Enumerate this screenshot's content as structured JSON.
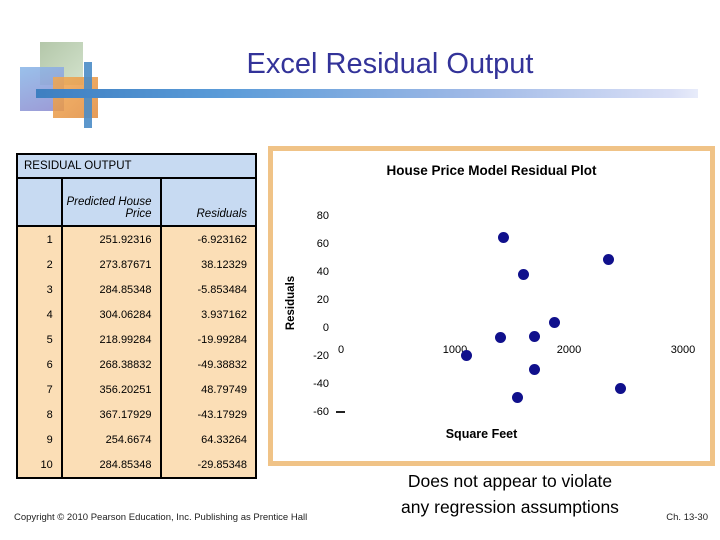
{
  "slide": {
    "title": "Excel Residual Output",
    "note_line1": "Does not appear to violate",
    "note_line2": "any regression assumptions",
    "footer": {
      "copyright": "Copyright © 2010 Pearson Education, Inc. Publishing as Prentice Hall",
      "chapter": "Ch. 13-30"
    }
  },
  "table": {
    "caption": "RESIDUAL OUTPUT",
    "col_predicted": "Predicted House Price",
    "col_residuals": "Residuals",
    "rows": [
      {
        "n": "1",
        "predicted": "251.92316",
        "residual": "-6.923162"
      },
      {
        "n": "2",
        "predicted": "273.87671",
        "residual": "38.12329"
      },
      {
        "n": "3",
        "predicted": "284.85348",
        "residual": "-5.853484"
      },
      {
        "n": "4",
        "predicted": "304.06284",
        "residual": "3.937162"
      },
      {
        "n": "5",
        "predicted": "218.99284",
        "residual": "-19.99284"
      },
      {
        "n": "6",
        "predicted": "268.38832",
        "residual": "-49.38832"
      },
      {
        "n": "7",
        "predicted": "356.20251",
        "residual": "48.79749"
      },
      {
        "n": "8",
        "predicted": "367.17929",
        "residual": "-43.17929"
      },
      {
        "n": "9",
        "predicted": "254.6674",
        "residual": "64.33264"
      },
      {
        "n": "10",
        "predicted": "284.85348",
        "residual": "-29.85348"
      }
    ]
  },
  "chart_data": {
    "type": "scatter",
    "title": "House Price Model Residual Plot",
    "xlabel": "Square Feet",
    "ylabel": "Residuals",
    "xlim": [
      0,
      3000
    ],
    "ylim": [
      -60,
      80
    ],
    "x_ticks": [
      0,
      1000,
      2000,
      3000
    ],
    "y_ticks": [
      80,
      60,
      40,
      20,
      0,
      -20,
      -40,
      -60
    ],
    "grid": false,
    "legend": false,
    "point_color": "#10108c",
    "points": [
      {
        "x": 1400,
        "y": -6.923162
      },
      {
        "x": 1600,
        "y": 38.12329
      },
      {
        "x": 1700,
        "y": -5.853484
      },
      {
        "x": 1875,
        "y": 3.937162
      },
      {
        "x": 1100,
        "y": -19.99284
      },
      {
        "x": 1550,
        "y": -49.38832
      },
      {
        "x": 2350,
        "y": 48.79749
      },
      {
        "x": 2450,
        "y": -43.17929
      },
      {
        "x": 1425,
        "y": 64.33264
      },
      {
        "x": 1700,
        "y": -29.85348
      }
    ]
  },
  "colors": {
    "title_text": "#333399",
    "table_header_bg": "#c7daf2",
    "table_body_bg": "#fbdeb6",
    "chart_frame": "#f0c387",
    "accent_bar": "#5a9bd8"
  }
}
